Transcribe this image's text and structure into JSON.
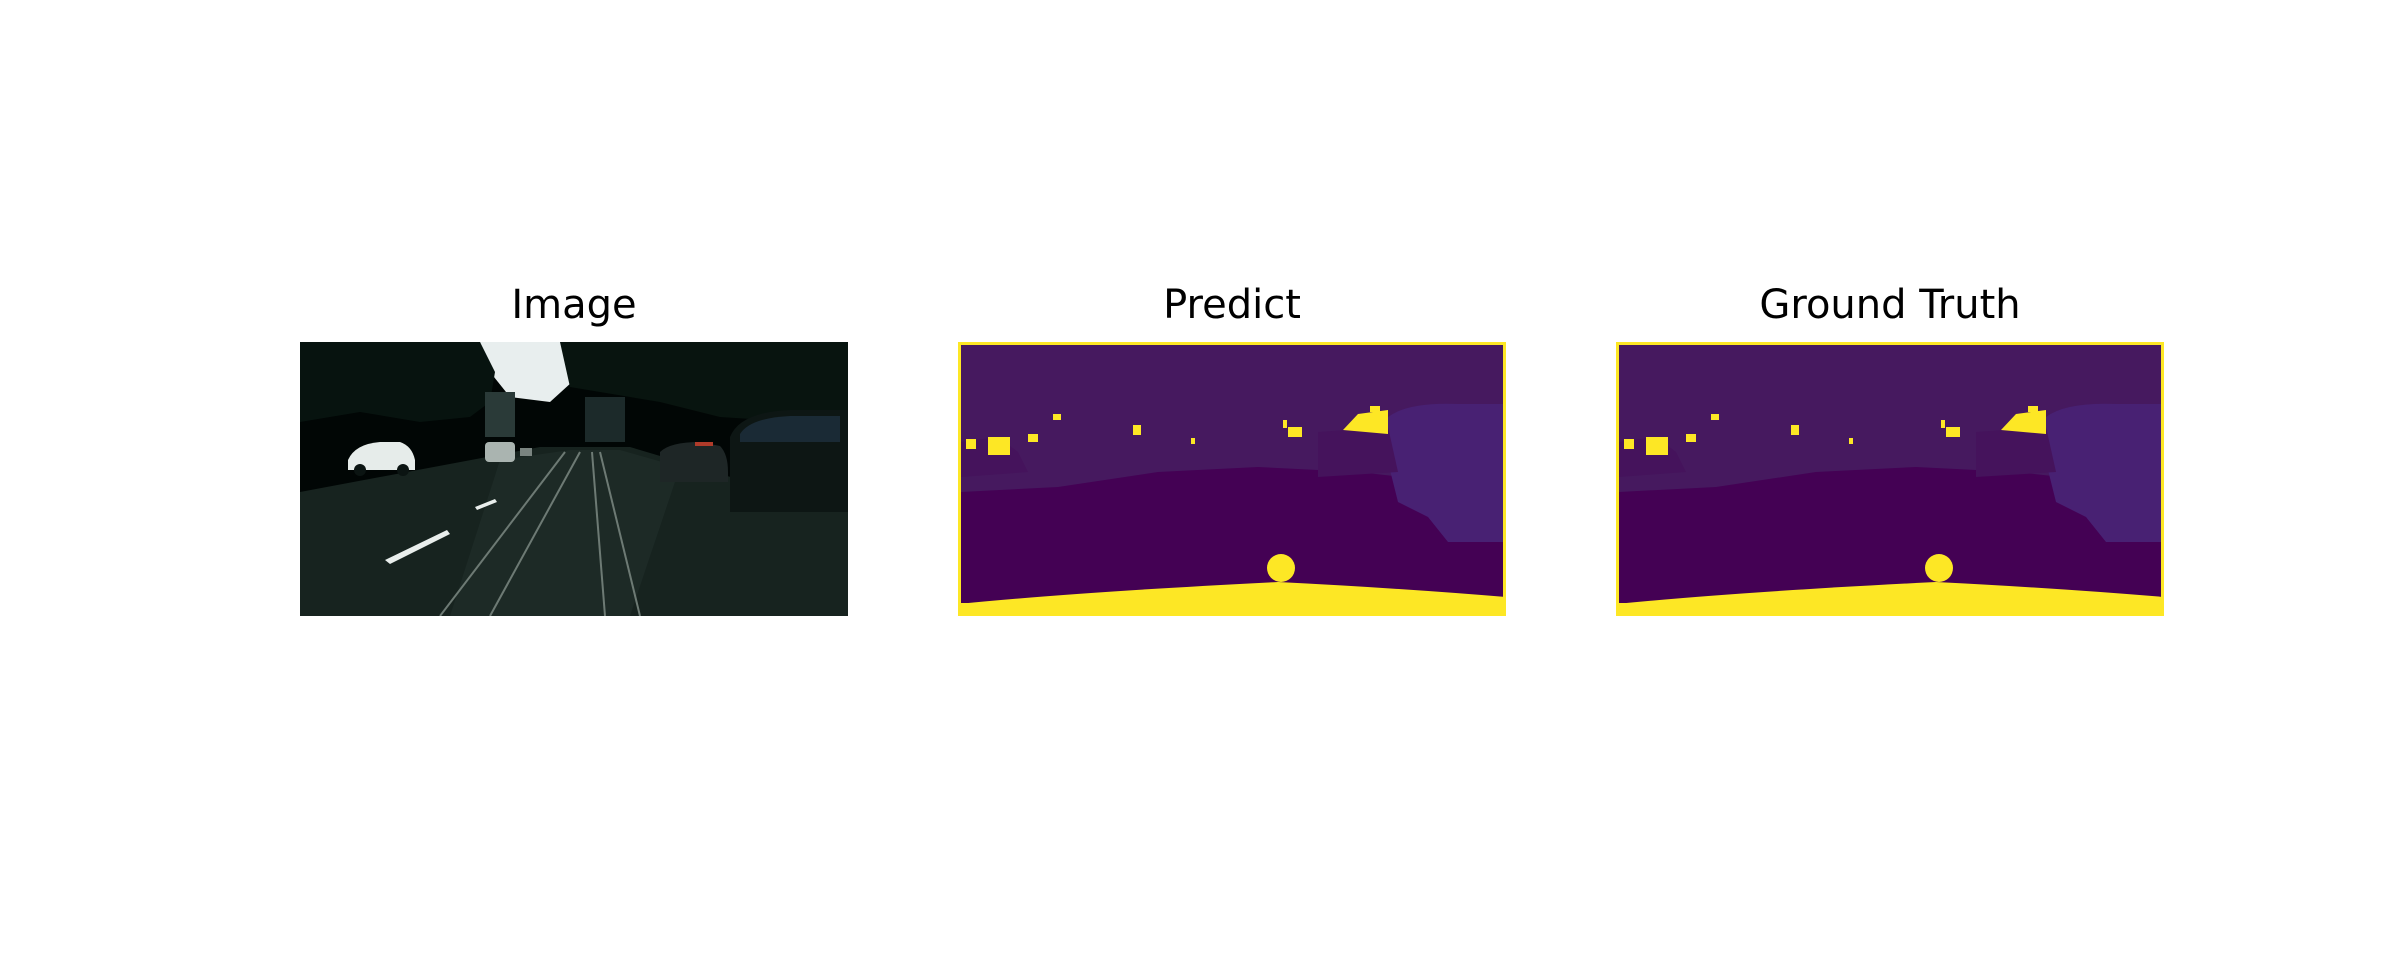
{
  "figure": {
    "panels": [
      {
        "title": "Image"
      },
      {
        "title": "Predict"
      },
      {
        "title": "Ground Truth"
      }
    ],
    "colors": {
      "background": "#ffffff",
      "seg_dark": "#440154",
      "seg_mid": "#46195f",
      "seg_light": "#472d7b",
      "seg_yellow": "#fde725",
      "photo_dark": "#020a08"
    }
  }
}
